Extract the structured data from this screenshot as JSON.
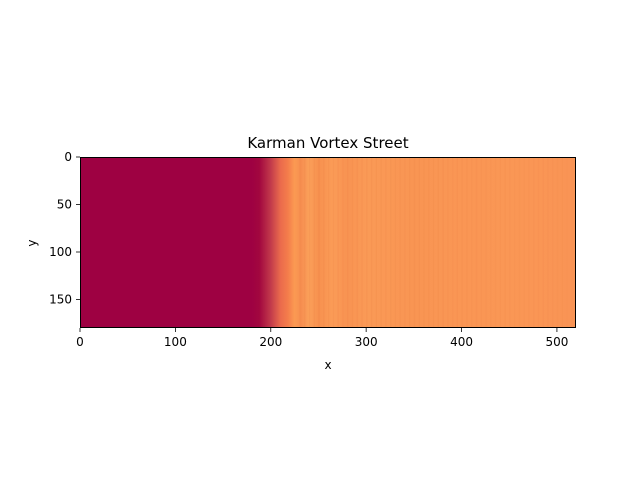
{
  "chart_data": {
    "type": "heatmap",
    "title": "Karman Vortex Street",
    "xlabel": "x",
    "ylabel": "y",
    "xlim": [
      0,
      520
    ],
    "ylim": [
      180,
      0
    ],
    "y_inverted": true,
    "x_ticks": [
      0,
      100,
      200,
      300,
      400,
      500
    ],
    "y_ticks": [
      0,
      50,
      100,
      150
    ],
    "x_tick_labels": [
      "0",
      "100",
      "200",
      "300",
      "400",
      "500"
    ],
    "y_tick_labels": [
      "0",
      "50",
      "100",
      "150"
    ],
    "grid": false,
    "legend": "none",
    "colormap": "Spectral",
    "color_stops": [
      {
        "x": 0,
        "color": "#9e0142"
      },
      {
        "x": 180,
        "color": "#9e0142"
      },
      {
        "x": 188,
        "color": "#a2073f"
      },
      {
        "x": 200,
        "color": "#c23a4b"
      },
      {
        "x": 210,
        "color": "#ea6a4c"
      },
      {
        "x": 218,
        "color": "#f47d4b"
      },
      {
        "x": 225,
        "color": "#fb9a52"
      },
      {
        "x": 232,
        "color": "#f68e50"
      },
      {
        "x": 240,
        "color": "#fba05a"
      },
      {
        "x": 250,
        "color": "#f7914f"
      },
      {
        "x": 265,
        "color": "#fb9c57"
      },
      {
        "x": 280,
        "color": "#f89352"
      },
      {
        "x": 300,
        "color": "#fa9a56"
      },
      {
        "x": 350,
        "color": "#f99553"
      },
      {
        "x": 450,
        "color": "#fa9755"
      },
      {
        "x": 520,
        "color": "#f99455"
      }
    ],
    "stripe_region": [
      230,
      520
    ]
  }
}
